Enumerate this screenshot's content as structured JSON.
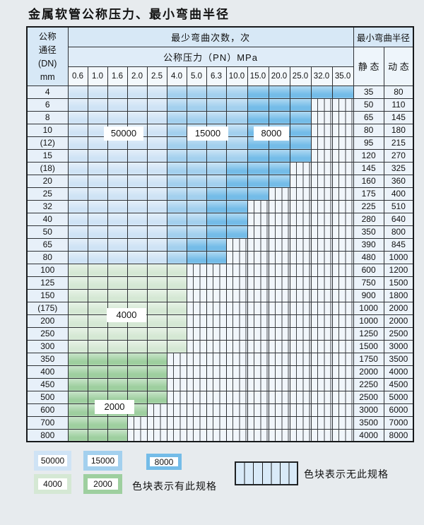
{
  "title": "金属软管公称压力、最小弯曲半径",
  "colors": {
    "c50000": "#cfe3f5",
    "c15000": "#a3d0ee",
    "c8000": "#74bce8",
    "c4000": "#d5e8d4",
    "c2000": "#9ecf9f",
    "stripecell": "#d9eaf8"
  },
  "header": {
    "dn": "公称\n通径\n(DN)\nmm",
    "cycles": "最少弯曲次数，次",
    "pressure": "公称压力（PN）MPa",
    "radius": "最小弯曲半径",
    "static": "静 态",
    "dynamic": "动 态",
    "pressures": [
      "0.6",
      "1.0",
      "1.6",
      "2.0",
      "2.5",
      "4.0",
      "5.0",
      "6.3",
      "10.0",
      "15.0",
      "20.0",
      "25.0",
      "32.0",
      "35.0"
    ]
  },
  "rows": [
    {
      "dn": "4",
      "cells": [
        "50000",
        "50000",
        "50000",
        "50000",
        "50000",
        "15000",
        "15000",
        "15000",
        "15000",
        "8000",
        "8000",
        "8000",
        "8000",
        "8000"
      ],
      "static": "35",
      "dynamic": "80"
    },
    {
      "dn": "6",
      "cells": [
        "50000",
        "50000",
        "50000",
        "50000",
        "50000",
        "15000",
        "15000",
        "15000",
        "15000",
        "8000",
        "8000",
        "8000",
        "none",
        "none"
      ],
      "static": "50",
      "dynamic": "110"
    },
    {
      "dn": "8",
      "cells": [
        "50000",
        "50000",
        "50000",
        "50000",
        "50000",
        "15000",
        "15000",
        "15000",
        "15000",
        "8000",
        "8000",
        "8000",
        "none",
        "none"
      ],
      "static": "65",
      "dynamic": "145"
    },
    {
      "dn": "10",
      "cells": [
        "50000",
        "50000",
        "50000",
        "50000",
        "50000",
        "15000",
        "15000",
        "15000",
        "15000",
        "8000",
        "8000",
        "8000",
        "none",
        "none"
      ],
      "static": "80",
      "dynamic": "180"
    },
    {
      "dn": "(12)",
      "cells": [
        "50000",
        "50000",
        "50000",
        "50000",
        "50000",
        "15000",
        "15000",
        "15000",
        "15000",
        "8000",
        "8000",
        "8000",
        "none",
        "none"
      ],
      "static": "95",
      "dynamic": "215"
    },
    {
      "dn": "15",
      "cells": [
        "50000",
        "50000",
        "50000",
        "50000",
        "50000",
        "15000",
        "15000",
        "15000",
        "15000",
        "8000",
        "8000",
        "8000",
        "none",
        "none"
      ],
      "static": "120",
      "dynamic": "270"
    },
    {
      "dn": "(18)",
      "cells": [
        "50000",
        "50000",
        "50000",
        "50000",
        "50000",
        "15000",
        "15000",
        "15000",
        "8000",
        "8000",
        "8000",
        "none",
        "none",
        "none"
      ],
      "static": "145",
      "dynamic": "325"
    },
    {
      "dn": "20",
      "cells": [
        "50000",
        "50000",
        "50000",
        "50000",
        "50000",
        "15000",
        "15000",
        "15000",
        "8000",
        "8000",
        "8000",
        "none",
        "none",
        "none"
      ],
      "static": "160",
      "dynamic": "360"
    },
    {
      "dn": "25",
      "cells": [
        "50000",
        "50000",
        "50000",
        "50000",
        "50000",
        "15000",
        "15000",
        "8000",
        "8000",
        "8000",
        "none",
        "none",
        "none",
        "none"
      ],
      "static": "175",
      "dynamic": "400"
    },
    {
      "dn": "32",
      "cells": [
        "50000",
        "50000",
        "50000",
        "50000",
        "50000",
        "15000",
        "15000",
        "8000",
        "8000",
        "none",
        "none",
        "none",
        "none",
        "none"
      ],
      "static": "225",
      "dynamic": "510"
    },
    {
      "dn": "40",
      "cells": [
        "50000",
        "50000",
        "50000",
        "50000",
        "50000",
        "15000",
        "15000",
        "8000",
        "8000",
        "none",
        "none",
        "none",
        "none",
        "none"
      ],
      "static": "280",
      "dynamic": "640"
    },
    {
      "dn": "50",
      "cells": [
        "50000",
        "50000",
        "50000",
        "50000",
        "50000",
        "15000",
        "15000",
        "8000",
        "8000",
        "none",
        "none",
        "none",
        "none",
        "none"
      ],
      "static": "350",
      "dynamic": "800"
    },
    {
      "dn": "65",
      "cells": [
        "50000",
        "50000",
        "50000",
        "50000",
        "50000",
        "15000",
        "8000",
        "8000",
        "none",
        "none",
        "none",
        "none",
        "none",
        "none"
      ],
      "static": "390",
      "dynamic": "845"
    },
    {
      "dn": "80",
      "cells": [
        "50000",
        "50000",
        "50000",
        "50000",
        "50000",
        "15000",
        "8000",
        "8000",
        "none",
        "none",
        "none",
        "none",
        "none",
        "none"
      ],
      "static": "480",
      "dynamic": "1000"
    },
    {
      "dn": "100",
      "cells": [
        "4000",
        "4000",
        "4000",
        "4000",
        "4000",
        "4000",
        "none",
        "none",
        "none",
        "none",
        "none",
        "none",
        "none",
        "none"
      ],
      "static": "600",
      "dynamic": "1200"
    },
    {
      "dn": "125",
      "cells": [
        "4000",
        "4000",
        "4000",
        "4000",
        "4000",
        "4000",
        "none",
        "none",
        "none",
        "none",
        "none",
        "none",
        "none",
        "none"
      ],
      "static": "750",
      "dynamic": "1500"
    },
    {
      "dn": "150",
      "cells": [
        "4000",
        "4000",
        "4000",
        "4000",
        "4000",
        "4000",
        "none",
        "none",
        "none",
        "none",
        "none",
        "none",
        "none",
        "none"
      ],
      "static": "900",
      "dynamic": "1800"
    },
    {
      "dn": "(175)",
      "cells": [
        "4000",
        "4000",
        "4000",
        "4000",
        "4000",
        "4000",
        "none",
        "none",
        "none",
        "none",
        "none",
        "none",
        "none",
        "none"
      ],
      "static": "1000",
      "dynamic": "2000"
    },
    {
      "dn": "200",
      "cells": [
        "4000",
        "4000",
        "4000",
        "4000",
        "4000",
        "4000",
        "none",
        "none",
        "none",
        "none",
        "none",
        "none",
        "none",
        "none"
      ],
      "static": "1000",
      "dynamic": "2000"
    },
    {
      "dn": "250",
      "cells": [
        "4000",
        "4000",
        "4000",
        "4000",
        "4000",
        "4000",
        "none",
        "none",
        "none",
        "none",
        "none",
        "none",
        "none",
        "none"
      ],
      "static": "1250",
      "dynamic": "2500"
    },
    {
      "dn": "300",
      "cells": [
        "4000",
        "4000",
        "4000",
        "4000",
        "4000",
        "4000",
        "none",
        "none",
        "none",
        "none",
        "none",
        "none",
        "none",
        "none"
      ],
      "static": "1500",
      "dynamic": "3000"
    },
    {
      "dn": "350",
      "cells": [
        "2000",
        "2000",
        "2000",
        "2000",
        "2000",
        "none",
        "none",
        "none",
        "none",
        "none",
        "none",
        "none",
        "none",
        "none"
      ],
      "static": "1750",
      "dynamic": "3500"
    },
    {
      "dn": "400",
      "cells": [
        "2000",
        "2000",
        "2000",
        "2000",
        "2000",
        "none",
        "none",
        "none",
        "none",
        "none",
        "none",
        "none",
        "none",
        "none"
      ],
      "static": "2000",
      "dynamic": "4000"
    },
    {
      "dn": "450",
      "cells": [
        "2000",
        "2000",
        "2000",
        "2000",
        "2000",
        "none",
        "none",
        "none",
        "none",
        "none",
        "none",
        "none",
        "none",
        "none"
      ],
      "static": "2250",
      "dynamic": "4500"
    },
    {
      "dn": "500",
      "cells": [
        "2000",
        "2000",
        "2000",
        "2000",
        "2000",
        "none",
        "none",
        "none",
        "none",
        "none",
        "none",
        "none",
        "none",
        "none"
      ],
      "static": "2500",
      "dynamic": "5000"
    },
    {
      "dn": "600",
      "cells": [
        "2000",
        "2000",
        "2000",
        "2000",
        "none",
        "none",
        "none",
        "none",
        "none",
        "none",
        "none",
        "none",
        "none",
        "none"
      ],
      "static": "3000",
      "dynamic": "6000"
    },
    {
      "dn": "700",
      "cells": [
        "2000",
        "2000",
        "2000",
        "none",
        "none",
        "none",
        "none",
        "none",
        "none",
        "none",
        "none",
        "none",
        "none",
        "none"
      ],
      "static": "3500",
      "dynamic": "7000"
    },
    {
      "dn": "800",
      "cells": [
        "2000",
        "2000",
        "2000",
        "none",
        "none",
        "none",
        "none",
        "none",
        "none",
        "none",
        "none",
        "none",
        "none",
        "none"
      ],
      "static": "4000",
      "dynamic": "8000"
    }
  ],
  "floating_labels": {
    "l50000": "50000",
    "l15000": "15000",
    "l8000": "8000",
    "l4000": "4000",
    "l2000": "2000"
  },
  "legend": {
    "values": [
      "50000",
      "15000",
      "8000",
      "4000",
      "2000"
    ],
    "has_spec_note": "色块表示有此规格",
    "no_spec_note": "色块表示无此规格"
  }
}
